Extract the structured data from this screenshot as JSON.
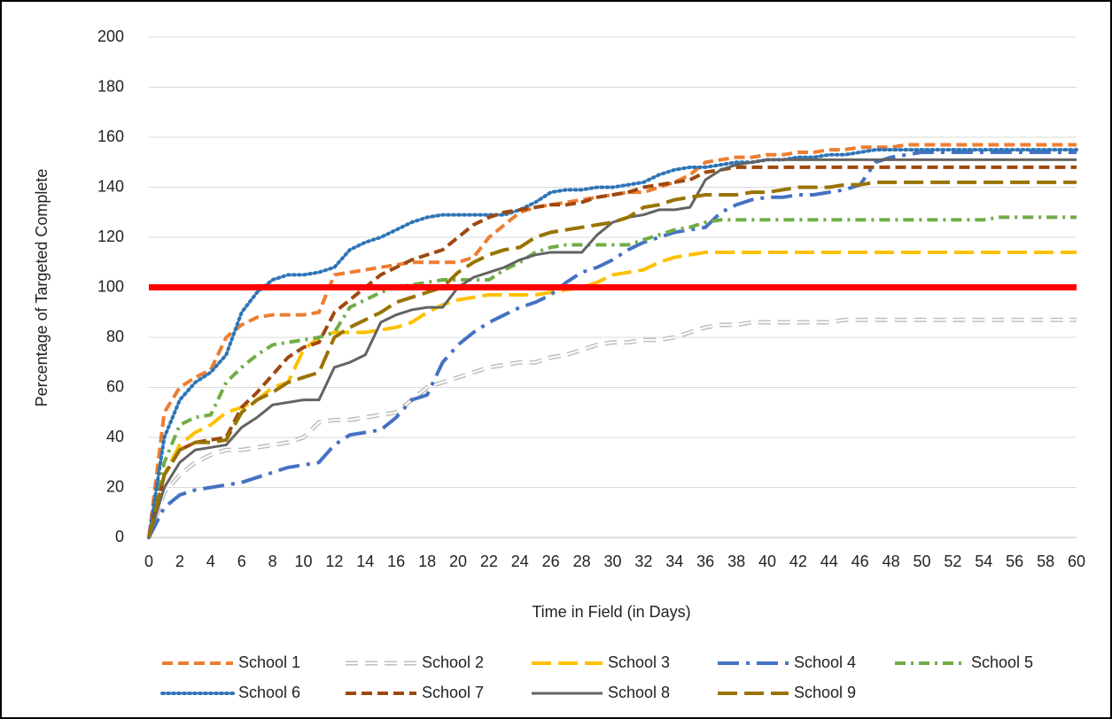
{
  "chart_data": {
    "type": "line",
    "y_label": "Percentage of Targeted Complete",
    "x_label": "Time in Field (in Days)",
    "x": [
      0,
      1,
      2,
      3,
      4,
      5,
      6,
      7,
      8,
      9,
      10,
      11,
      12,
      13,
      14,
      15,
      16,
      17,
      18,
      19,
      20,
      21,
      22,
      23,
      24,
      25,
      26,
      27,
      28,
      29,
      30,
      31,
      32,
      33,
      34,
      35,
      36,
      37,
      38,
      39,
      40,
      41,
      42,
      43,
      44,
      45,
      46,
      47,
      48,
      49,
      50,
      51,
      52,
      53,
      54,
      55,
      56,
      57,
      58,
      59,
      60
    ],
    "xlim": [
      0,
      60
    ],
    "xticks": [
      0,
      2,
      4,
      6,
      8,
      10,
      12,
      14,
      16,
      18,
      20,
      22,
      24,
      26,
      28,
      30,
      32,
      34,
      36,
      38,
      40,
      42,
      44,
      46,
      48,
      50,
      52,
      54,
      56,
      58,
      60
    ],
    "ylim": [
      0,
      200
    ],
    "yticks": [
      0,
      20,
      40,
      60,
      80,
      100,
      120,
      140,
      160,
      180,
      200
    ],
    "grid": true,
    "legend": "bottom",
    "reference_line": {
      "value": 100,
      "color": "#ff0000"
    },
    "series": [
      {
        "name": "School 1",
        "color": "#ed7d31",
        "dash": "dash",
        "values": [
          0,
          50,
          60,
          64,
          67,
          80,
          85,
          88,
          89,
          89,
          89,
          90,
          105,
          106,
          107,
          108,
          109,
          110,
          110,
          110,
          110,
          112,
          120,
          125,
          130,
          132,
          133,
          134,
          135,
          136,
          137,
          138,
          138,
          140,
          142,
          145,
          150,
          151,
          152,
          152,
          153,
          153,
          154,
          154,
          155,
          155,
          156,
          156,
          156,
          157,
          157,
          157,
          157,
          157,
          157,
          157,
          157,
          157,
          157,
          157,
          157
        ]
      },
      {
        "name": "School 2",
        "color": "#bfbfbf",
        "dash": "hollow-dash",
        "values": [
          0,
          18,
          25,
          30,
          33,
          35,
          35,
          36,
          37,
          38,
          40,
          46,
          47,
          47,
          48,
          49,
          50,
          55,
          60,
          62,
          64,
          66,
          68,
          69,
          70,
          70,
          72,
          73,
          75,
          77,
          78,
          78,
          79,
          79,
          80,
          82,
          84,
          85,
          85,
          86,
          86,
          86,
          86,
          86,
          86,
          87,
          87,
          87,
          87,
          87,
          87,
          87,
          87,
          87,
          87,
          87,
          87,
          87,
          87,
          87,
          87
        ]
      },
      {
        "name": "School 3",
        "color": "#ffc000",
        "dash": "long-dash",
        "values": [
          0,
          25,
          37,
          42,
          45,
          50,
          52,
          55,
          60,
          62,
          75,
          80,
          82,
          82,
          82,
          83,
          84,
          86,
          90,
          93,
          95,
          96,
          97,
          97,
          97,
          97,
          98,
          99,
          100,
          102,
          105,
          106,
          107,
          110,
          112,
          113,
          114,
          114,
          114,
          114,
          114,
          114,
          114,
          114,
          114,
          114,
          114,
          114,
          114,
          114,
          114,
          114,
          114,
          114,
          114,
          114,
          114,
          114,
          114,
          114,
          114
        ]
      },
      {
        "name": "School 4",
        "color": "#4472c4",
        "dash": "long-dash-dot",
        "values": [
          0,
          12,
          17,
          19,
          20,
          21,
          22,
          24,
          26,
          28,
          29,
          30,
          37,
          41,
          42,
          43,
          48,
          55,
          57,
          70,
          77,
          82,
          86,
          89,
          92,
          94,
          97,
          102,
          106,
          108,
          111,
          115,
          118,
          120,
          122,
          123,
          124,
          130,
          133,
          135,
          136,
          136,
          137,
          137,
          138,
          139,
          141,
          150,
          152,
          153,
          154,
          154,
          154,
          154,
          154,
          154,
          154,
          154,
          154,
          154,
          154
        ]
      },
      {
        "name": "School 5",
        "color": "#70ad47",
        "dash": "dash-dot",
        "values": [
          0,
          30,
          45,
          48,
          49,
          62,
          68,
          73,
          77,
          78,
          79,
          80,
          82,
          92,
          95,
          98,
          100,
          101,
          102,
          103,
          103,
          103,
          103,
          107,
          110,
          114,
          116,
          117,
          117,
          117,
          117,
          117,
          119,
          121,
          123,
          124,
          126,
          127,
          127,
          127,
          127,
          127,
          127,
          127,
          127,
          127,
          127,
          127,
          127,
          127,
          127,
          127,
          127,
          127,
          127,
          128,
          128,
          128,
          128,
          128,
          128
        ]
      },
      {
        "name": "School 6",
        "color": "#2e75b6",
        "dash": "dot",
        "values": [
          0,
          40,
          55,
          62,
          66,
          73,
          90,
          98,
          103,
          105,
          105,
          106,
          108,
          115,
          118,
          120,
          123,
          126,
          128,
          129,
          129,
          129,
          129,
          129,
          131,
          134,
          138,
          139,
          139,
          140,
          140,
          141,
          142,
          145,
          147,
          148,
          148,
          149,
          150,
          150,
          151,
          151,
          152,
          152,
          153,
          153,
          154,
          155,
          155,
          155,
          155,
          155,
          155,
          155,
          155,
          155,
          155,
          155,
          155,
          155,
          155
        ]
      },
      {
        "name": "School 7",
        "color": "#9e480e",
        "dash": "dash",
        "values": [
          0,
          25,
          35,
          38,
          39,
          40,
          52,
          58,
          65,
          72,
          76,
          78,
          90,
          95,
          100,
          105,
          108,
          111,
          113,
          115,
          120,
          125,
          128,
          130,
          131,
          132,
          133,
          133,
          134,
          136,
          137,
          138,
          140,
          141,
          142,
          143,
          146,
          147,
          148,
          148,
          148,
          148,
          148,
          148,
          148,
          148,
          148,
          148,
          148,
          148,
          148,
          148,
          148,
          148,
          148,
          148,
          148,
          148,
          148,
          148,
          148
        ]
      },
      {
        "name": "School 8",
        "color": "#636363",
        "dash": "solid",
        "values": [
          0,
          20,
          30,
          35,
          36,
          37,
          44,
          48,
          53,
          54,
          55,
          55,
          68,
          70,
          73,
          86,
          89,
          91,
          92,
          92,
          100,
          104,
          106,
          108,
          111,
          113,
          114,
          114,
          114,
          121,
          126,
          128,
          129,
          131,
          131,
          132,
          143,
          147,
          149,
          150,
          151,
          151,
          151,
          151,
          151,
          151,
          151,
          151,
          151,
          151,
          151,
          151,
          151,
          151,
          151,
          151,
          151,
          151,
          151,
          151,
          151
        ]
      },
      {
        "name": "School 9",
        "color": "#997300",
        "dash": "long-dash",
        "values": [
          0,
          25,
          35,
          38,
          38,
          39,
          50,
          55,
          58,
          62,
          64,
          66,
          80,
          84,
          87,
          90,
          94,
          96,
          98,
          100,
          106,
          110,
          113,
          115,
          116,
          120,
          122,
          123,
          124,
          125,
          126,
          128,
          132,
          133,
          135,
          136,
          137,
          137,
          137,
          138,
          138,
          139,
          140,
          140,
          140,
          141,
          141,
          142,
          142,
          142,
          142,
          142,
          142,
          142,
          142,
          142,
          142,
          142,
          142,
          142,
          142
        ]
      }
    ]
  }
}
